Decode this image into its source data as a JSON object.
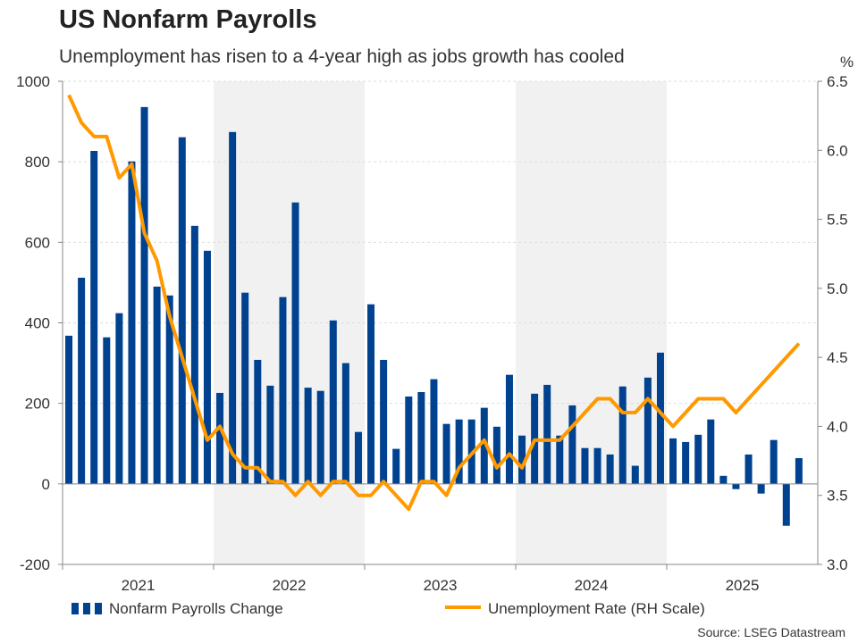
{
  "title": "US Nonfarm Payrolls",
  "subtitle": "Unemployment has risen to a 4-year high as jobs growth has cooled",
  "source": "Source: LSEG Datastream",
  "colors": {
    "bars": "#00428f",
    "line": "#ff9900",
    "shade": "#f1f1f1"
  },
  "chart_data": {
    "type": "bar+line",
    "title": "US Nonfarm Payrolls",
    "subtitle": "Unemployment has risen to a 4-year high as jobs growth has cooled",
    "x_tick_labels": [
      "2021",
      "2022",
      "2023",
      "2024",
      "2025"
    ],
    "shaded_years": [
      "2022",
      "2024"
    ],
    "y_left": {
      "ylim": [
        -200,
        1000
      ],
      "ticks": [
        -200,
        0,
        200,
        400,
        600,
        800,
        1000
      ]
    },
    "y_right": {
      "unit": "%",
      "ylim": [
        3.0,
        6.5
      ],
      "ticks": [
        "3.0",
        "3.5",
        "4.0",
        "4.5",
        "5.0",
        "5.5",
        "6.0",
        "6.5"
      ]
    },
    "grid": "horizontal dashed",
    "legend": "bottom",
    "start": "2021-01",
    "frequency": "monthly",
    "series": [
      {
        "name": "Nonfarm Payrolls Change",
        "type": "bar",
        "axis": "left",
        "values": [
          368,
          512,
          827,
          364,
          424,
          801,
          936,
          490,
          468,
          861,
          641,
          579,
          226,
          874,
          475,
          308,
          244,
          464,
          699,
          239,
          231,
          406,
          300,
          129,
          446,
          308,
          87,
          217,
          228,
          260,
          149,
          160,
          160,
          189,
          142,
          271,
          120,
          224,
          246,
          120,
          195,
          89,
          89,
          73,
          242,
          45,
          264,
          326,
          113,
          104,
          122,
          160,
          20,
          -13,
          73,
          -24,
          109,
          -104,
          64
        ]
      },
      {
        "name": "Unemployment Rate (RH Scale)",
        "type": "line",
        "axis": "right",
        "values": [
          6.4,
          6.2,
          6.1,
          6.1,
          5.8,
          5.9,
          5.4,
          5.2,
          4.8,
          4.5,
          4.2,
          3.9,
          4.0,
          3.8,
          3.7,
          3.7,
          3.6,
          3.6,
          3.5,
          3.6,
          3.5,
          3.6,
          3.6,
          3.5,
          3.5,
          3.6,
          3.5,
          3.4,
          3.6,
          3.6,
          3.5,
          3.7,
          3.8,
          3.9,
          3.7,
          3.8,
          3.7,
          3.9,
          3.9,
          3.9,
          4.0,
          4.1,
          4.2,
          4.2,
          4.1,
          4.1,
          4.2,
          4.1,
          4.0,
          4.1,
          4.2,
          4.2,
          4.2,
          4.1,
          4.2,
          4.3,
          4.4,
          4.5,
          4.6
        ]
      }
    ]
  }
}
